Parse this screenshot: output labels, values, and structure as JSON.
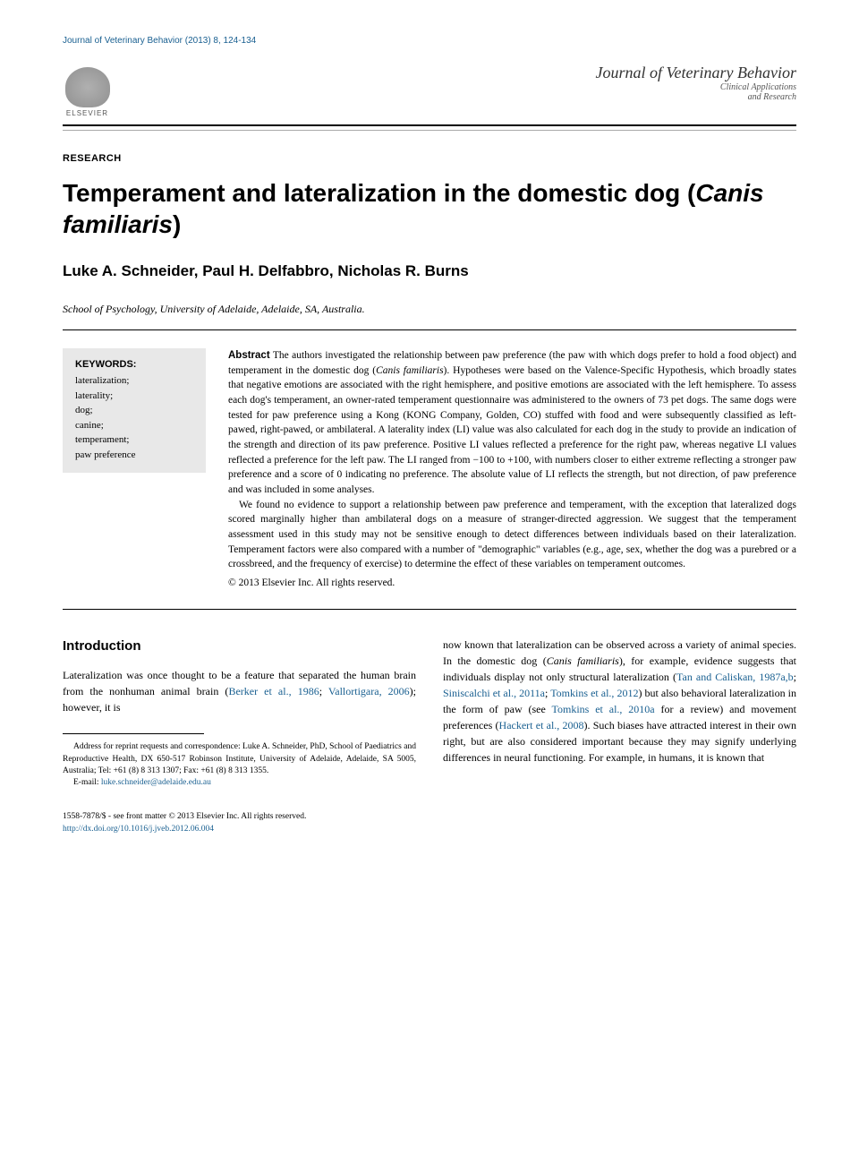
{
  "journal_ref": "Journal of Veterinary Behavior (2013) 8, 124-134",
  "publisher": {
    "name": "ELSEVIER",
    "journal_title": "Journal of Veterinary Behavior",
    "journal_subtitle1": "Clinical Applications",
    "journal_subtitle2": "and Research"
  },
  "section_label": "RESEARCH",
  "title_part1": "Temperament and lateralization in the domestic dog (",
  "title_italic": "Canis familiaris",
  "title_part2": ")",
  "authors": "Luke A. Schneider, Paul H. Delfabbro, Nicholas R. Burns",
  "affiliation": "School of Psychology, University of Adelaide, Adelaide, SA, Australia.",
  "keywords": {
    "heading": "KEYWORDS:",
    "items": [
      "lateralization;",
      "laterality;",
      "dog;",
      "canine;",
      "temperament;",
      "paw preference"
    ]
  },
  "abstract": {
    "label": "Abstract",
    "para1a": "The authors investigated the relationship between paw preference (the paw with which dogs prefer to hold a food object) and temperament in the domestic dog (",
    "para1_italic": "Canis familiaris",
    "para1b": "). Hypotheses were based on the Valence-Specific Hypothesis, which broadly states that negative emotions are associated with the right hemisphere, and positive emotions are associated with the left hemisphere. To assess each dog's temperament, an owner-rated temperament questionnaire was administered to the owners of 73 pet dogs. The same dogs were tested for paw preference using a Kong (KONG Company, Golden, CO) stuffed with food and were subsequently classified as left-pawed, right-pawed, or ambilateral. A laterality index (LI) value was also calculated for each dog in the study to provide an indication of the strength and direction of its paw preference. Positive LI values reflected a preference for the right paw, whereas negative LI values reflected a preference for the left paw. The LI ranged from −100 to +100, with numbers closer to either extreme reflecting a stronger paw preference and a score of 0 indicating no preference. The absolute value of LI reflects the strength, but not direction, of paw preference and was included in some analyses.",
    "para2": "We found no evidence to support a relationship between paw preference and temperament, with the exception that lateralized dogs scored marginally higher than ambilateral dogs on a measure of stranger-directed aggression. We suggest that the temperament assessment used in this study may not be sensitive enough to detect differences between individuals based on their lateralization. Temperament factors were also compared with a number of \"demographic\" variables (e.g., age, sex, whether the dog was a purebred or a crossbreed, and the frequency of exercise) to determine the effect of these variables on temperament outcomes.",
    "copyright": "© 2013 Elsevier Inc. All rights reserved."
  },
  "intro": {
    "heading": "Introduction",
    "col1_a": "Lateralization was once thought to be a feature that separated the human brain from the nonhuman animal brain (",
    "col1_link1": "Berker et al., 1986",
    "col1_b": "; ",
    "col1_link2": "Vallortigara, 2006",
    "col1_c": "); however, it is",
    "col2_a": "now known that lateralization can be observed across a variety of animal species. In the domestic dog (",
    "col2_italic": "Canis familiaris",
    "col2_b": "), for example, evidence suggests that individuals display not only structural lateralization (",
    "col2_link1": "Tan and Caliskan, 1987a,b",
    "col2_c": "; ",
    "col2_link2": "Siniscalchi et al., 2011a",
    "col2_d": "; ",
    "col2_link3": "Tomkins et al., 2012",
    "col2_e": ") but also behavioral lateralization in the form of paw (see ",
    "col2_link4": "Tomkins et al., 2010a",
    "col2_f": " for a review) and movement preferences (",
    "col2_link5": "Hackert et al., 2008",
    "col2_g": "). Such biases have attracted interest in their own right, but are also considered important because they may signify underlying differences in neural functioning. For example, in humans, it is known that"
  },
  "footnote": {
    "line1": "Address for reprint requests and correspondence: Luke A. Schneider, PhD, School of Paediatrics and Reproductive Health, DX 650-517 Robinson Institute, University of Adelaide, Adelaide, SA 5005, Australia; Tel: +61 (8) 8 313 1307; Fax: +61 (8) 8 313 1355.",
    "line2_label": "E-mail: ",
    "line2_link": "luke.schneider@adelaide.edu.au"
  },
  "footer": {
    "line1": "1558-7878/$ - see front matter © 2013 Elsevier Inc. All rights reserved.",
    "doi": "http://dx.doi.org/10.1016/j.jveb.2012.06.004"
  }
}
